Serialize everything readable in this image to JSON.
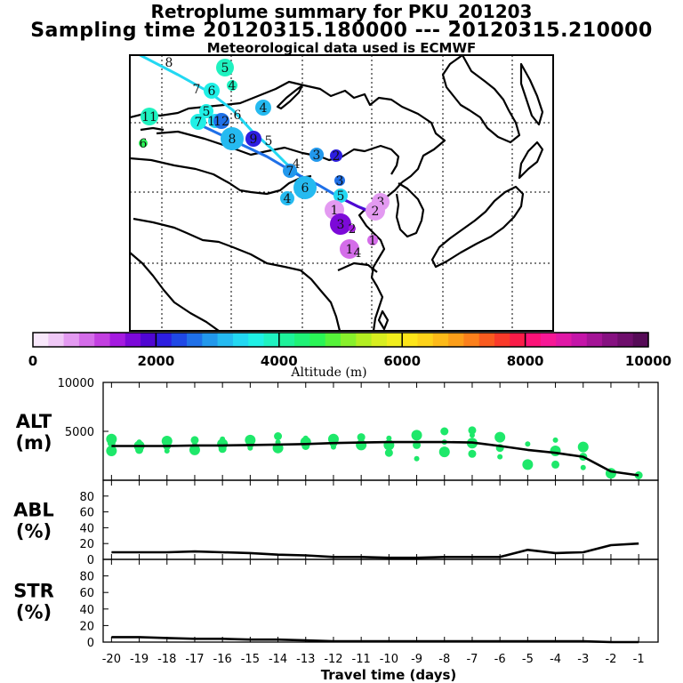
{
  "header": {
    "title": "Retroplume summary for PKU_201203",
    "sampling": "Sampling time   20120315.180000 --- 20120315.210000",
    "meteo": "Meteorological data used is ECMWF"
  },
  "chart_data": [
    {
      "type": "scatter",
      "title": "Trajectory map",
      "note": "Plume cluster centroids coloured by altitude (m); numbers = days before sampling",
      "points": [
        {
          "label": "8",
          "alt": 3900,
          "day": 8
        },
        {
          "label": "5",
          "alt": 3800,
          "day": 5
        },
        {
          "label": "4",
          "alt": 3900,
          "day": 4
        },
        {
          "label": "7",
          "alt": 3700,
          "day": 7
        },
        {
          "label": "6",
          "alt": 3600,
          "day": 6
        },
        {
          "label": "4",
          "alt": 3200,
          "day": 4
        },
        {
          "label": "11",
          "alt": 3800,
          "day": 11
        },
        {
          "label": "5",
          "alt": 3700,
          "day": 5
        },
        {
          "label": "6",
          "alt": 3300,
          "day": 6
        },
        {
          "label": "7",
          "alt": 3600,
          "day": 7
        },
        {
          "label": "11",
          "alt": 3400,
          "day": 11
        },
        {
          "label": "12",
          "alt": 2700,
          "day": 12
        },
        {
          "label": "8",
          "alt": 3000,
          "day": 8
        },
        {
          "label": "9",
          "alt": 2200,
          "day": 9
        },
        {
          "label": "5",
          "alt": 3100,
          "day": 5
        },
        {
          "label": "6",
          "alt": 4600,
          "day": 6
        },
        {
          "label": "3",
          "alt": 2900,
          "day": 3
        },
        {
          "label": "2",
          "alt": 2000,
          "day": 2
        },
        {
          "label": "4",
          "alt": 3200,
          "day": 4
        },
        {
          "label": "7",
          "alt": 2800,
          "day": 7
        },
        {
          "label": "6",
          "alt": 3000,
          "day": 6
        },
        {
          "label": "4",
          "alt": 3100,
          "day": 4
        },
        {
          "label": "3",
          "alt": 2500,
          "day": 3
        },
        {
          "label": "5",
          "alt": 3400,
          "day": 5
        },
        {
          "label": "3",
          "alt": 700,
          "day": 3
        },
        {
          "label": "1",
          "alt": 500,
          "day": 1
        },
        {
          "label": "2",
          "alt": 600,
          "day": 2
        },
        {
          "label": "3",
          "alt": 1600,
          "day": 3
        },
        {
          "label": "2",
          "alt": 1400,
          "day": 2
        },
        {
          "label": "1",
          "alt": 900,
          "day": 1
        },
        {
          "label": "4",
          "alt": 1500,
          "day": 4
        },
        {
          "label": "1",
          "alt": 800,
          "day": 1
        }
      ]
    },
    {
      "type": "colorbar",
      "xlabel": "Altitude (m)",
      "range": [
        0,
        10000
      ],
      "tick_labels": [
        "0",
        "2000",
        "4000",
        "6000",
        "8000",
        "10000"
      ],
      "colors": [
        "#f8e8fb",
        "#efc8f6",
        "#e39af1",
        "#d46de9",
        "#c23fe0",
        "#a51be0",
        "#7c09d8",
        "#5006d2",
        "#2d1ee0",
        "#1f48e6",
        "#1f70e8",
        "#2298ec",
        "#25baf0",
        "#23d8f2",
        "#20f0e6",
        "#1ff2c0",
        "#1ef29a",
        "#1ff276",
        "#2af556",
        "#56f33a",
        "#88f02c",
        "#b3ee22",
        "#d8ee20",
        "#f1ee1d",
        "#fde51a",
        "#fdd21a",
        "#fdba19",
        "#fc9e1a",
        "#fb801c",
        "#f95b1f",
        "#f93a2a",
        "#fa1c48",
        "#fc1378",
        "#f71896",
        "#e018a6",
        "#c415a8",
        "#a41496",
        "#861181",
        "#6e0e6c",
        "#560b57"
      ]
    },
    {
      "type": "line",
      "ylabel": "ALT\n(m)",
      "x": [
        -20,
        -19,
        -18,
        -17,
        -16,
        -15,
        -14,
        -13,
        -12,
        -11,
        -10,
        -9,
        -8,
        -7,
        -6,
        -5,
        -4,
        -3,
        -2,
        -1
      ],
      "series": [
        {
          "name": "mean altitude",
          "values": [
            3500,
            3500,
            3500,
            3550,
            3550,
            3600,
            3650,
            3700,
            3800,
            3850,
            3900,
            3900,
            3900,
            3850,
            3500,
            3100,
            2800,
            2400,
            900,
            500
          ]
        }
      ],
      "spread": [
        {
          "x": -20,
          "alts": [
            3000,
            3400,
            3800,
            4200
          ]
        },
        {
          "x": -19,
          "alts": [
            3100,
            3500,
            3900
          ]
        },
        {
          "x": -18,
          "alts": [
            3000,
            3500,
            4000
          ]
        },
        {
          "x": -17,
          "alts": [
            3100,
            3600,
            4100
          ]
        },
        {
          "x": -16,
          "alts": [
            3200,
            3700,
            4200
          ]
        },
        {
          "x": -15,
          "alts": [
            3300,
            3700,
            4100
          ]
        },
        {
          "x": -14,
          "alts": [
            3300,
            3900,
            4500
          ]
        },
        {
          "x": -13,
          "alts": [
            3500,
            3900,
            4300
          ]
        },
        {
          "x": -12,
          "alts": [
            3400,
            3800,
            4200
          ]
        },
        {
          "x": -11,
          "alts": [
            3600,
            4000,
            4400
          ]
        },
        {
          "x": -10,
          "alts": [
            2800,
            3600,
            4300
          ]
        },
        {
          "x": -9,
          "alts": [
            2200,
            3600,
            4600
          ]
        },
        {
          "x": -8,
          "alts": [
            2900,
            3900,
            5000
          ]
        },
        {
          "x": -7,
          "alts": [
            2700,
            3800,
            4600,
            5100
          ]
        },
        {
          "x": -6,
          "alts": [
            2400,
            3300,
            4400
          ]
        },
        {
          "x": -5,
          "alts": [
            1600,
            3700
          ]
        },
        {
          "x": -4,
          "alts": [
            1600,
            3000,
            4100
          ]
        },
        {
          "x": -3,
          "alts": [
            1300,
            2400,
            3400
          ]
        },
        {
          "x": -2,
          "alts": [
            700
          ]
        },
        {
          "x": -1,
          "alts": [
            500
          ]
        }
      ],
      "ylim": [
        0,
        10000
      ],
      "yticks": [
        "5000",
        "10000"
      ]
    },
    {
      "type": "line",
      "ylabel": "ABL\n(%)",
      "x": [
        -20,
        -19,
        -18,
        -17,
        -16,
        -15,
        -14,
        -13,
        -12,
        -11,
        -10,
        -9,
        -8,
        -7,
        -6,
        -5,
        -4,
        -3,
        -2,
        -1
      ],
      "series": [
        {
          "name": "ABL fraction",
          "values": [
            9,
            9,
            9,
            10,
            9,
            8,
            6,
            5,
            3,
            3,
            2,
            2,
            3,
            3,
            3,
            12,
            8,
            9,
            18,
            20
          ]
        }
      ],
      "ylim": [
        0,
        100
      ],
      "yticks": [
        "0",
        "20",
        "40",
        "60",
        "80"
      ]
    },
    {
      "type": "line",
      "ylabel": "STR\n(%)",
      "xlabel": "Travel time (days)",
      "x": [
        -20,
        -19,
        -18,
        -17,
        -16,
        -15,
        -14,
        -13,
        -12,
        -11,
        -10,
        -9,
        -8,
        -7,
        -6,
        -5,
        -4,
        -3,
        -2,
        -1
      ],
      "series": [
        {
          "name": "STR fraction",
          "values": [
            6,
            6,
            5,
            4,
            4,
            3,
            3,
            2,
            1,
            1,
            1,
            1,
            1,
            1,
            1,
            1,
            1,
            1,
            0,
            0
          ]
        }
      ],
      "ylim": [
        0,
        100
      ],
      "yticks": [
        "0",
        "20",
        "40",
        "60",
        "80"
      ],
      "xtick_labels": [
        "-20",
        "-19",
        "-18",
        "-17",
        "-16",
        "-15",
        "-14",
        "-13",
        "-12",
        "-11",
        "-10",
        "-9",
        "-8",
        "-7",
        "-6",
        "-5",
        "-4",
        "-3",
        "-2",
        "-1"
      ]
    }
  ]
}
